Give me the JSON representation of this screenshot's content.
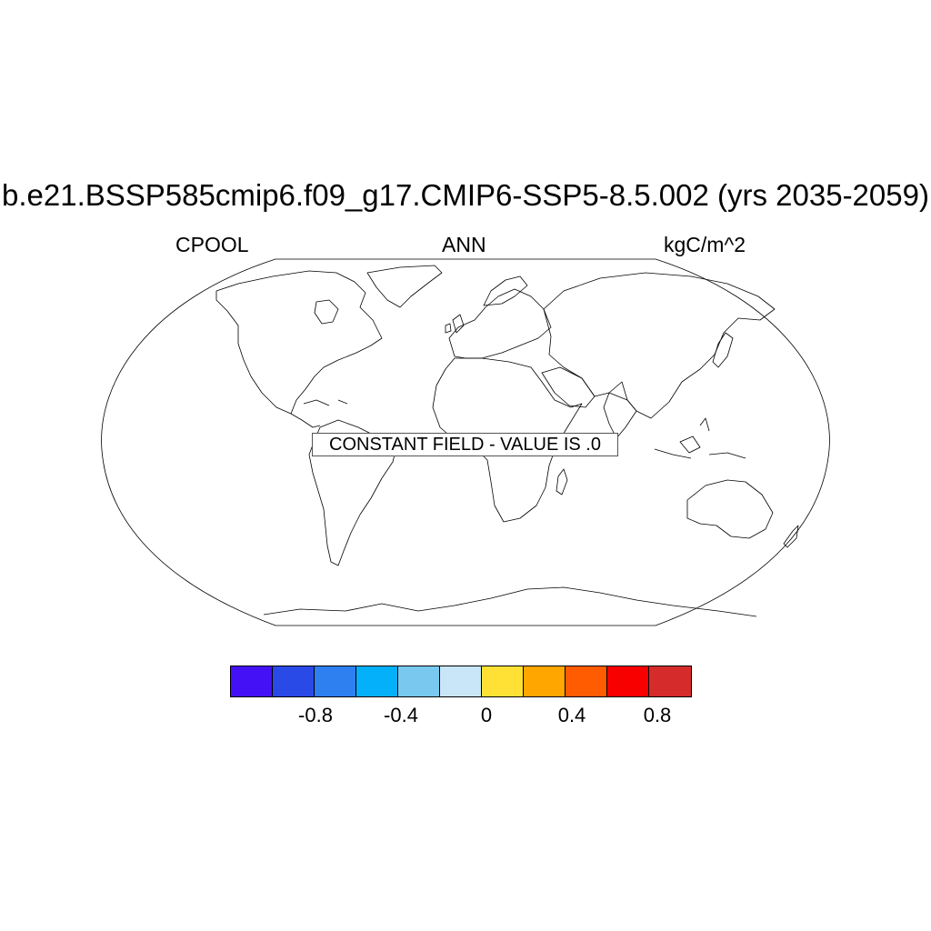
{
  "figure": {
    "title": "b.e21.BSSP585cmip6.f09_g17.CMIP6-SSP5-8.5.002 (yrs 2035-2059)",
    "left_label": "CPOOL",
    "center_label": "ANN",
    "right_label": "kgC/m^2",
    "constant_field_message": "CONSTANT FIELD - VALUE IS .0"
  },
  "map": {
    "projection": "Robinson",
    "coastline_color": "#000000",
    "field_value": 0
  },
  "colorbar": {
    "colors": [
      "#4410f6",
      "#2a4ae8",
      "#2e7ff0",
      "#05b0fb",
      "#78c8ef",
      "#c8e6f8",
      "#ffe135",
      "#ffa600",
      "#ff5b00",
      "#f80000",
      "#d52b2b"
    ],
    "tick_labels": [
      "-0.8",
      "-0.4",
      "0",
      "0.4",
      "0.8"
    ]
  }
}
